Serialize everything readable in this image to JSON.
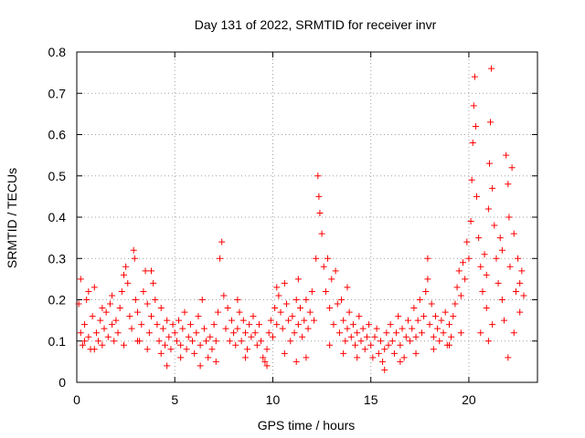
{
  "chart_data": {
    "type": "scatter",
    "title": "Day 131 of 2022, SRMTID for receiver invr",
    "xlabel": "GPS time / hours",
    "ylabel": "SRMTID / TECUs",
    "xlim": [
      0,
      23.5
    ],
    "ylim": [
      0,
      0.8
    ],
    "grid": true,
    "x_ticks": [
      0,
      5,
      10,
      15,
      20
    ],
    "x_tick_labels": [
      "0",
      "5",
      "10",
      "15",
      "20"
    ],
    "y_ticks": [
      0,
      0.1,
      0.2,
      0.3,
      0.4,
      0.5,
      0.6,
      0.7,
      0.8
    ],
    "y_tick_labels": [
      "0",
      "0.1",
      "0.2",
      "0.3",
      "0.4",
      "0.5",
      "0.6",
      "0.7",
      "0.8"
    ],
    "series": [
      {
        "name": "SRMTID",
        "color": "#ff0000",
        "marker": "plus",
        "points": [
          [
            0.1,
            0.19
          ],
          [
            0.2,
            0.12
          ],
          [
            0.2,
            0.25
          ],
          [
            0.3,
            0.09
          ],
          [
            0.4,
            0.14
          ],
          [
            0.5,
            0.2
          ],
          [
            0.6,
            0.11
          ],
          [
            0.7,
            0.08
          ],
          [
            0.8,
            0.16
          ],
          [
            0.9,
            0.23
          ],
          [
            1.0,
            0.12
          ],
          [
            1.1,
            0.1
          ],
          [
            1.2,
            0.15
          ],
          [
            1.3,
            0.09
          ],
          [
            1.4,
            0.13
          ],
          [
            1.5,
            0.17
          ],
          [
            1.6,
            0.11
          ],
          [
            1.7,
            0.19
          ],
          [
            1.8,
            0.14
          ],
          [
            1.9,
            0.1
          ],
          [
            2.0,
            0.15
          ],
          [
            2.1,
            0.12
          ],
          [
            2.2,
            0.18
          ],
          [
            2.3,
            0.22
          ],
          [
            2.4,
            0.26
          ],
          [
            2.5,
            0.28
          ],
          [
            2.6,
            0.24
          ],
          [
            2.7,
            0.16
          ],
          [
            2.8,
            0.13
          ],
          [
            2.9,
            0.32
          ],
          [
            2.95,
            0.3
          ],
          [
            3.0,
            0.2
          ],
          [
            3.1,
            0.17
          ],
          [
            3.2,
            0.1
          ],
          [
            3.3,
            0.14
          ],
          [
            3.4,
            0.22
          ],
          [
            3.5,
            0.27
          ],
          [
            3.6,
            0.19
          ],
          [
            3.7,
            0.12
          ],
          [
            3.8,
            0.16
          ],
          [
            3.9,
            0.24
          ],
          [
            4.0,
            0.2
          ],
          [
            4.1,
            0.14
          ],
          [
            4.2,
            0.1
          ],
          [
            4.3,
            0.18
          ],
          [
            4.4,
            0.13
          ],
          [
            4.5,
            0.09
          ],
          [
            4.6,
            0.15
          ],
          [
            4.7,
            0.11
          ],
          [
            4.8,
            0.08
          ],
          [
            4.9,
            0.14
          ],
          [
            5.0,
            0.12
          ],
          [
            5.1,
            0.1
          ],
          [
            5.2,
            0.15
          ],
          [
            5.3,
            0.09
          ],
          [
            5.4,
            0.13
          ],
          [
            5.5,
            0.17
          ],
          [
            5.6,
            0.08
          ],
          [
            5.7,
            0.11
          ],
          [
            5.8,
            0.14
          ],
          [
            5.9,
            0.1
          ],
          [
            6.0,
            0.07
          ],
          [
            6.1,
            0.12
          ],
          [
            6.2,
            0.16
          ],
          [
            6.3,
            0.09
          ],
          [
            6.4,
            0.2
          ],
          [
            6.5,
            0.13
          ],
          [
            6.6,
            0.1
          ],
          [
            6.7,
            0.06
          ],
          [
            6.8,
            0.11
          ],
          [
            6.9,
            0.08
          ],
          [
            7.0,
            0.14
          ],
          [
            7.1,
            0.1
          ],
          [
            7.2,
            0.17
          ],
          [
            7.3,
            0.3
          ],
          [
            7.4,
            0.34
          ],
          [
            7.5,
            0.21
          ],
          [
            7.6,
            0.13
          ],
          [
            7.7,
            0.18
          ],
          [
            7.8,
            0.1
          ],
          [
            7.9,
            0.15
          ],
          [
            8.0,
            0.12
          ],
          [
            8.1,
            0.09
          ],
          [
            8.2,
            0.13
          ],
          [
            8.3,
            0.17
          ],
          [
            8.4,
            0.1
          ],
          [
            8.5,
            0.15
          ],
          [
            8.6,
            0.12
          ],
          [
            8.7,
            0.08
          ],
          [
            8.8,
            0.14
          ],
          [
            8.9,
            0.11
          ],
          [
            9.0,
            0.16
          ],
          [
            9.1,
            0.12
          ],
          [
            9.2,
            0.09
          ],
          [
            9.3,
            0.14
          ],
          [
            9.4,
            0.1
          ],
          [
            9.5,
            0.06
          ],
          [
            9.6,
            0.05
          ],
          [
            9.7,
            0.08
          ],
          [
            9.8,
            0.12
          ],
          [
            9.9,
            0.15
          ],
          [
            10.0,
            0.11
          ],
          [
            10.1,
            0.18
          ],
          [
            10.2,
            0.14
          ],
          [
            10.3,
            0.21
          ],
          [
            10.4,
            0.17
          ],
          [
            10.5,
            0.13
          ],
          [
            10.6,
            0.24
          ],
          [
            10.7,
            0.19
          ],
          [
            10.8,
            0.15
          ],
          [
            10.9,
            0.1
          ],
          [
            11.0,
            0.16
          ],
          [
            11.1,
            0.12
          ],
          [
            11.2,
            0.2
          ],
          [
            11.3,
            0.14
          ],
          [
            11.4,
            0.18
          ],
          [
            11.5,
            0.11
          ],
          [
            11.6,
            0.15
          ],
          [
            11.7,
            0.2
          ],
          [
            11.8,
            0.13
          ],
          [
            11.9,
            0.17
          ],
          [
            12.0,
            0.22
          ],
          [
            12.1,
            0.15
          ],
          [
            12.2,
            0.3
          ],
          [
            12.3,
            0.5
          ],
          [
            12.35,
            0.45
          ],
          [
            12.4,
            0.41
          ],
          [
            12.5,
            0.36
          ],
          [
            12.6,
            0.28
          ],
          [
            12.7,
            0.22
          ],
          [
            12.8,
            0.3
          ],
          [
            12.9,
            0.18
          ],
          [
            13.0,
            0.25
          ],
          [
            13.1,
            0.14
          ],
          [
            13.2,
            0.27
          ],
          [
            13.3,
            0.19
          ],
          [
            13.4,
            0.12
          ],
          [
            13.5,
            0.2
          ],
          [
            13.6,
            0.15
          ],
          [
            13.7,
            0.1
          ],
          [
            13.8,
            0.13
          ],
          [
            13.9,
            0.17
          ],
          [
            14.0,
            0.11
          ],
          [
            14.1,
            0.14
          ],
          [
            14.2,
            0.09
          ],
          [
            14.3,
            0.12
          ],
          [
            14.4,
            0.16
          ],
          [
            14.5,
            0.1
          ],
          [
            14.6,
            0.13
          ],
          [
            14.7,
            0.08
          ],
          [
            14.8,
            0.11
          ],
          [
            14.9,
            0.14
          ],
          [
            15.0,
            0.09
          ],
          [
            15.1,
            0.06
          ],
          [
            15.2,
            0.11
          ],
          [
            15.3,
            0.13
          ],
          [
            15.4,
            0.07
          ],
          [
            15.5,
            0.1
          ],
          [
            15.6,
            0.05
          ],
          [
            15.7,
            0.08
          ],
          [
            15.8,
            0.12
          ],
          [
            15.9,
            0.09
          ],
          [
            16.0,
            0.14
          ],
          [
            16.1,
            0.1
          ],
          [
            16.2,
            0.07
          ],
          [
            16.3,
            0.12
          ],
          [
            16.4,
            0.16
          ],
          [
            16.5,
            0.09
          ],
          [
            16.6,
            0.13
          ],
          [
            16.7,
            0.06
          ],
          [
            16.8,
            0.11
          ],
          [
            16.9,
            0.15
          ],
          [
            17.0,
            0.1
          ],
          [
            17.1,
            0.13
          ],
          [
            17.2,
            0.18
          ],
          [
            17.3,
            0.11
          ],
          [
            17.4,
            0.15
          ],
          [
            17.5,
            0.2
          ],
          [
            17.6,
            0.12
          ],
          [
            17.7,
            0.16
          ],
          [
            17.8,
            0.22
          ],
          [
            17.9,
            0.25
          ],
          [
            18.0,
            0.14
          ],
          [
            18.1,
            0.19
          ],
          [
            18.2,
            0.11
          ],
          [
            18.3,
            0.16
          ],
          [
            18.4,
            0.13
          ],
          [
            18.5,
            0.1
          ],
          [
            18.6,
            0.15
          ],
          [
            18.7,
            0.12
          ],
          [
            18.8,
            0.17
          ],
          [
            18.9,
            0.09
          ],
          [
            19.0,
            0.14
          ],
          [
            19.1,
            0.11
          ],
          [
            19.2,
            0.16
          ],
          [
            19.3,
            0.19
          ],
          [
            19.4,
            0.23
          ],
          [
            19.5,
            0.27
          ],
          [
            19.6,
            0.21
          ],
          [
            19.7,
            0.29
          ],
          [
            19.8,
            0.25
          ],
          [
            19.9,
            0.34
          ],
          [
            20.0,
            0.3
          ],
          [
            20.1,
            0.39
          ],
          [
            20.15,
            0.49
          ],
          [
            20.2,
            0.58
          ],
          [
            20.25,
            0.67
          ],
          [
            20.3,
            0.74
          ],
          [
            20.35,
            0.62
          ],
          [
            20.4,
            0.45
          ],
          [
            20.5,
            0.35
          ],
          [
            20.6,
            0.28
          ],
          [
            20.7,
            0.22
          ],
          [
            20.8,
            0.31
          ],
          [
            20.9,
            0.18
          ],
          [
            21.0,
            0.42
          ],
          [
            21.05,
            0.53
          ],
          [
            21.1,
            0.63
          ],
          [
            21.15,
            0.76
          ],
          [
            21.2,
            0.47
          ],
          [
            21.3,
            0.38
          ],
          [
            21.4,
            0.3
          ],
          [
            21.5,
            0.24
          ],
          [
            21.6,
            0.35
          ],
          [
            21.7,
            0.2
          ],
          [
            21.8,
            0.15
          ],
          [
            21.9,
            0.55
          ],
          [
            22.0,
            0.48
          ],
          [
            22.05,
            0.4
          ],
          [
            22.1,
            0.28
          ],
          [
            22.2,
            0.52
          ],
          [
            22.3,
            0.36
          ],
          [
            22.4,
            0.22
          ],
          [
            22.5,
            0.3
          ],
          [
            22.6,
            0.17
          ],
          [
            22.7,
            0.27
          ],
          [
            22.8,
            0.21
          ],
          [
            21.0,
            0.1
          ],
          [
            21.2,
            0.14
          ],
          [
            22.0,
            0.06
          ],
          [
            22.3,
            0.12
          ],
          [
            20.6,
            0.12
          ],
          [
            21.7,
            0.32
          ],
          [
            20.9,
            0.26
          ],
          [
            22.6,
            0.24
          ],
          [
            0.4,
            0.1
          ],
          [
            0.9,
            0.08
          ],
          [
            1.3,
            0.18
          ],
          [
            2.4,
            0.09
          ],
          [
            3.1,
            0.1
          ],
          [
            3.6,
            0.08
          ],
          [
            4.3,
            0.07
          ],
          [
            4.6,
            0.04
          ],
          [
            5.3,
            0.06
          ],
          [
            6.3,
            0.04
          ],
          [
            7.1,
            0.05
          ],
          [
            8.6,
            0.06
          ],
          [
            9.7,
            0.04
          ],
          [
            10.6,
            0.07
          ],
          [
            11.2,
            0.05
          ],
          [
            11.7,
            0.06
          ],
          [
            12.9,
            0.09
          ],
          [
            13.6,
            0.07
          ],
          [
            14.3,
            0.06
          ],
          [
            15.7,
            0.03
          ],
          [
            16.5,
            0.05
          ],
          [
            17.3,
            0.07
          ],
          [
            18.2,
            0.08
          ],
          [
            19.0,
            0.09
          ],
          [
            19.6,
            0.12
          ],
          [
            8.2,
            0.2
          ],
          [
            10.2,
            0.23
          ],
          [
            11.3,
            0.25
          ],
          [
            13.8,
            0.23
          ],
          [
            17.9,
            0.3
          ],
          [
            3.8,
            0.27
          ],
          [
            1.8,
            0.21
          ],
          [
            0.6,
            0.22
          ]
        ]
      }
    ]
  }
}
